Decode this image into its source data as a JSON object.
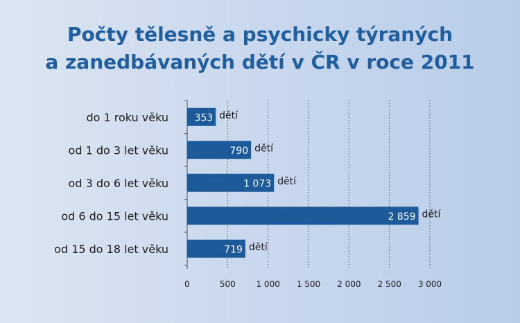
{
  "title": {
    "line1": "Počty tělesně a psychicky týraných",
    "line2": "a zanedbávaných dětí v ČR v roce 2011"
  },
  "chart_data": {
    "type": "bar",
    "orientation": "horizontal",
    "categories": [
      "do 1 roku věku",
      "od 1 do 3 let věku",
      "od 3 do 6 let věku",
      "od 6 do 15 let věku",
      "od 15 do 18 let věku"
    ],
    "values": [
      353,
      790,
      1073,
      2859,
      719
    ],
    "value_labels": [
      "353",
      "790",
      "1 073",
      "2 859",
      "719"
    ],
    "unit_label": "dětí",
    "xlim": [
      0,
      3000
    ],
    "xticks": [
      0,
      500,
      1000,
      1500,
      2000,
      2500,
      3000
    ],
    "xtick_labels": [
      "0",
      "500",
      "1 000",
      "1 500",
      "2 000",
      "2 500",
      "3 000"
    ],
    "grid": "vertical dotted",
    "legend": "none",
    "colors": {
      "bar": "#1c5a99",
      "bar_label": "#ffffff",
      "text": "#1a1a1a",
      "grid": "#5a5a5a",
      "axis": "#4a4a4a"
    }
  }
}
